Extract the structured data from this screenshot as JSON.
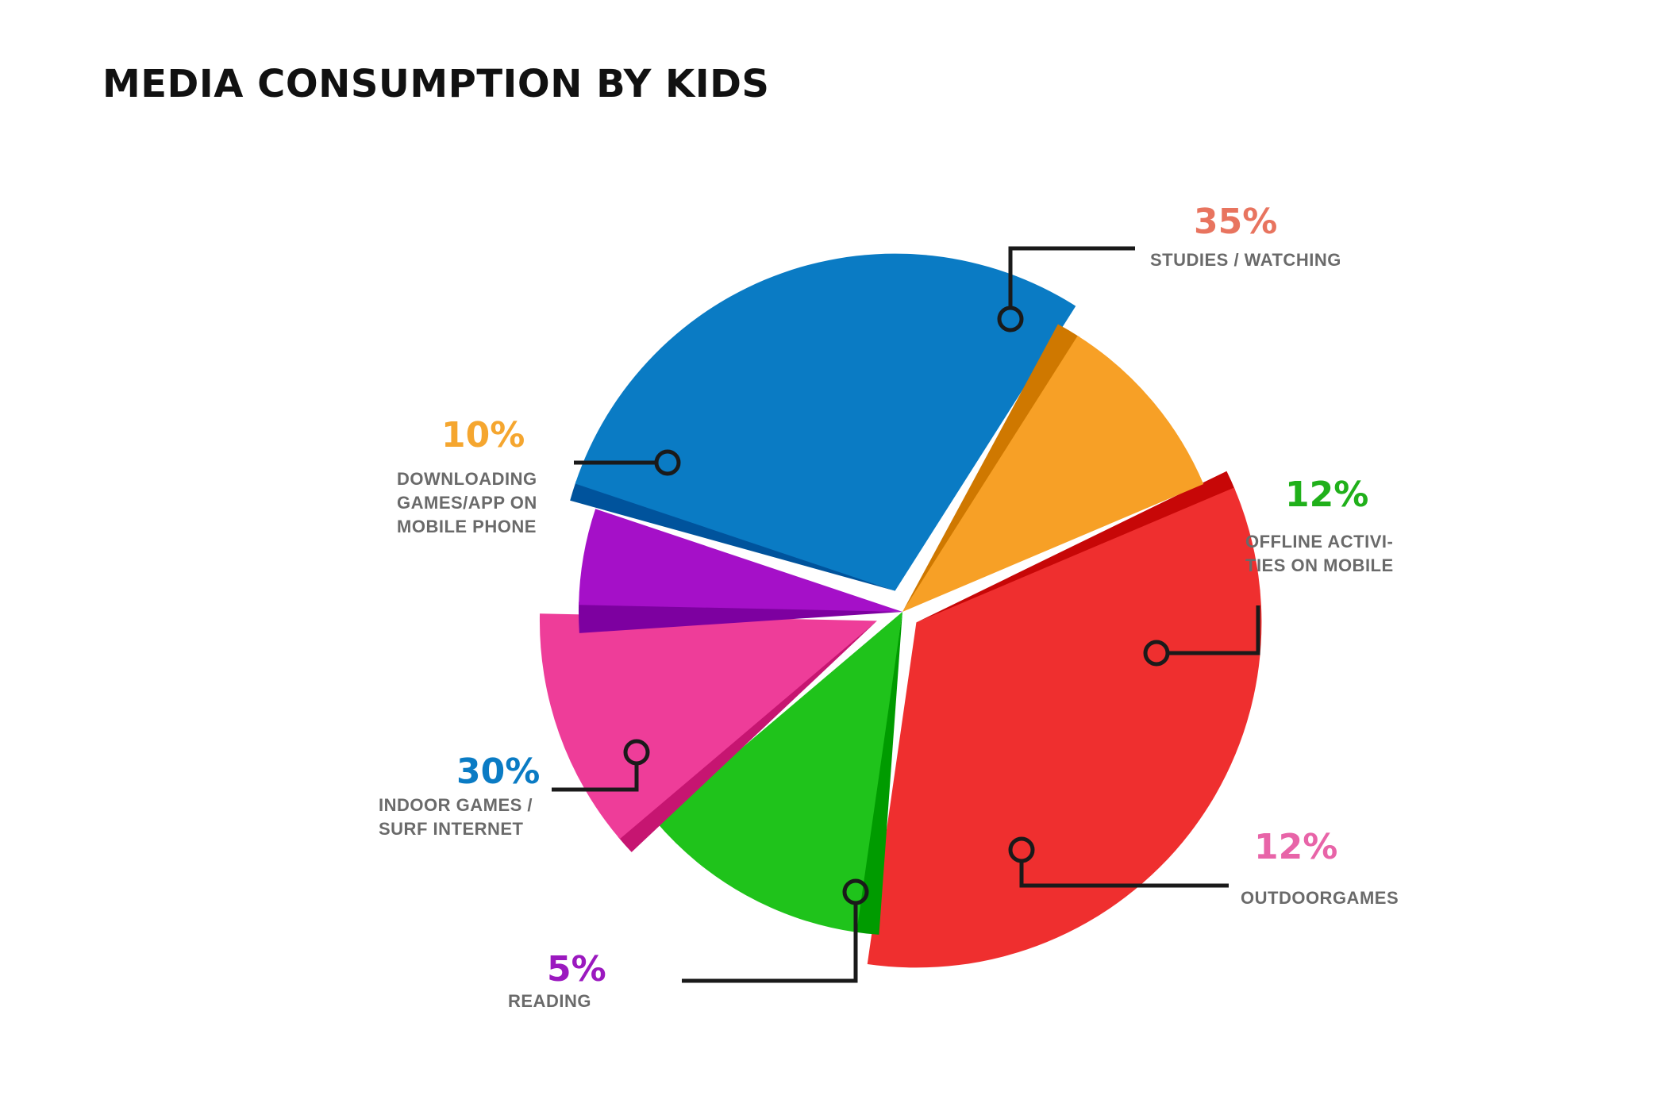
{
  "title": "MEDIA CONSUMPTION BY KIDS",
  "chart_data": {
    "type": "pie",
    "title": "MEDIA CONSUMPTION BY KIDS",
    "slices": [
      {
        "label": "STUDIES / WATCHING",
        "value": 35,
        "display": "35%",
        "color": "#ef2f2f",
        "label_color": "#e8745f"
      },
      {
        "label": "OFFLINE ACTIVI-\nTIES ON MOBILE",
        "value": 12,
        "display": "12%",
        "color": "#1fc31b",
        "label_color": "#20b01a"
      },
      {
        "label": "OUTDOORGAMES",
        "value": 12,
        "display": "12%",
        "color": "#ee3d99",
        "label_color": "#e864a8"
      },
      {
        "label": "READING",
        "value": 5,
        "display": "5%",
        "color": "#a510c8",
        "label_color": "#9b19bf"
      },
      {
        "label": "INDOOR GAMES /\nSURF INTERNET",
        "value": 30,
        "display": "30%",
        "color": "#0a7bc4",
        "label_color": "#0a7bc4"
      },
      {
        "label": "DOWNLOADING\nGAMES/APP ON\nMOBILE PHONE",
        "value": 10,
        "display": "10%",
        "color": "#f7a026",
        "label_color": "#f5a62f"
      }
    ]
  }
}
